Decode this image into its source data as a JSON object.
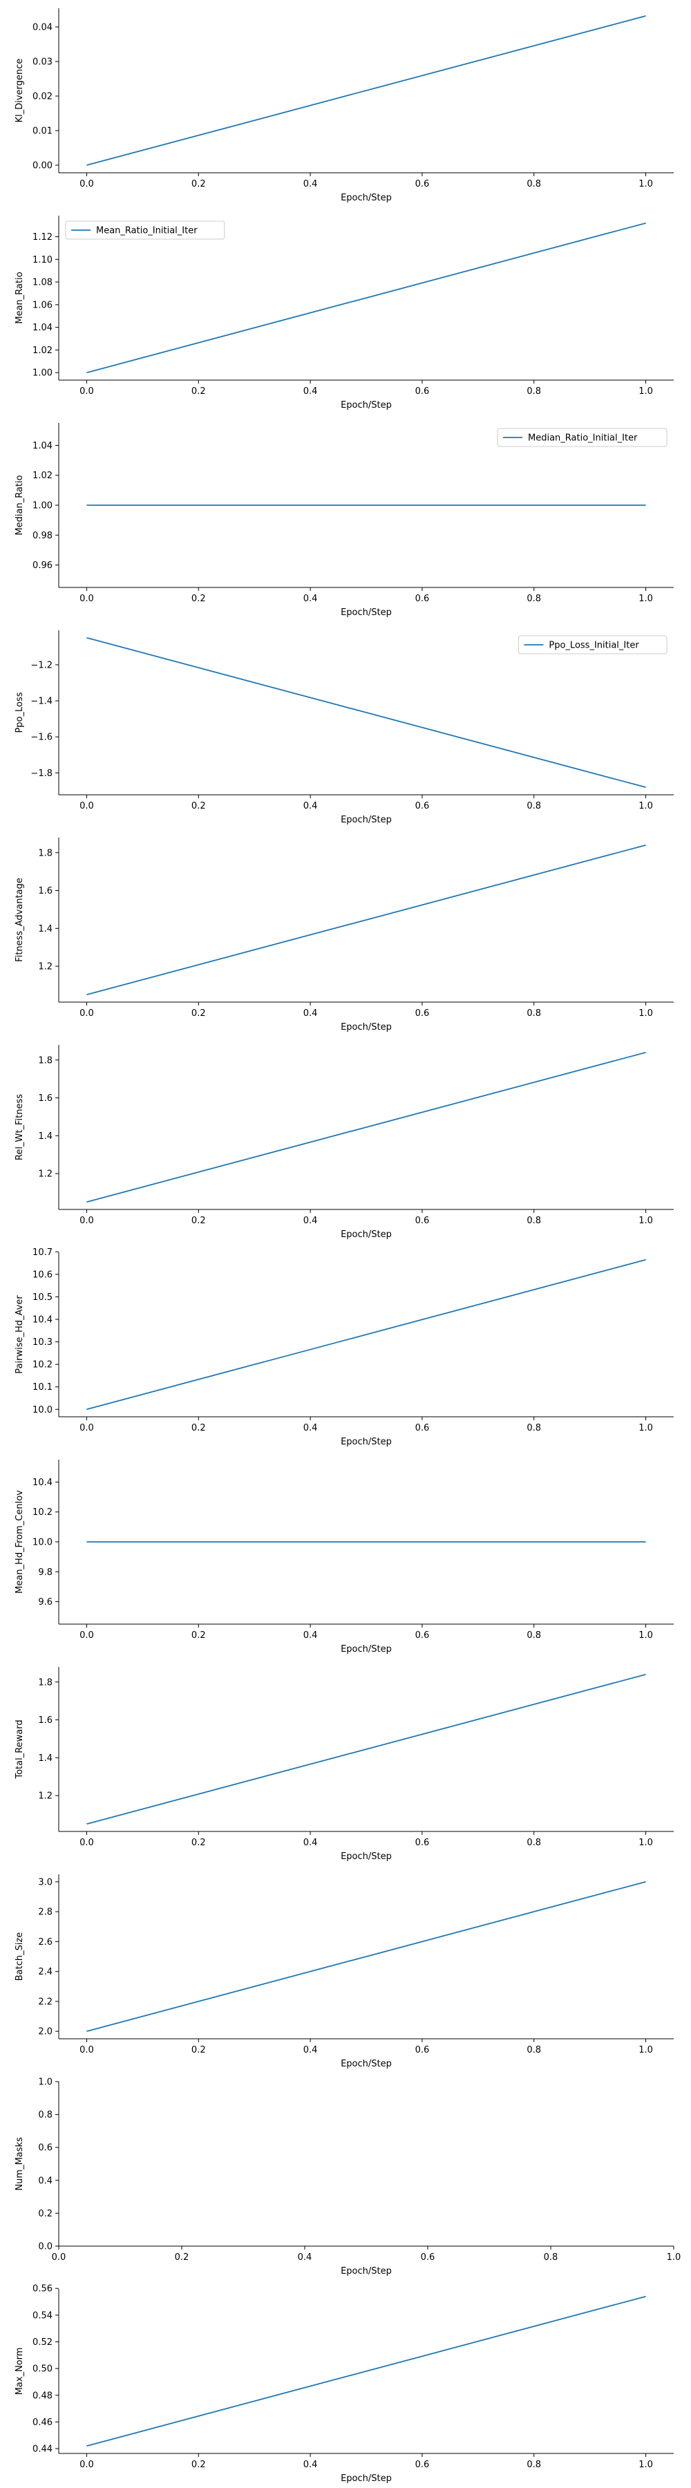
{
  "line_color": "#1f77b4",
  "chart_data": [
    {
      "type": "line",
      "xlabel": "Epoch/Step",
      "ylabel": "Kl_Divergence",
      "x": [
        0,
        1
      ],
      "y": [
        0.0,
        0.0432
      ],
      "xlim": [
        -0.05,
        1.05
      ],
      "ylim": [
        -0.0022,
        0.0454
      ],
      "xticks": [
        0,
        0.2,
        0.4,
        0.6,
        0.8,
        1
      ],
      "xtick_labels": [
        "0.0",
        "0.2",
        "0.4",
        "0.6",
        "0.8",
        "1.0"
      ],
      "yticks": [
        0,
        0.01,
        0.02,
        0.03,
        0.04
      ],
      "ytick_labels": [
        "0.00",
        "0.01",
        "0.02",
        "0.03",
        "0.04"
      ],
      "legend": null
    },
    {
      "type": "line",
      "xlabel": "Epoch/Step",
      "ylabel": "Mean_Ratio",
      "x": [
        0,
        1
      ],
      "y": [
        1.0,
        1.132
      ],
      "xlim": [
        -0.05,
        1.05
      ],
      "ylim": [
        0.9934,
        1.1386
      ],
      "xticks": [
        0,
        0.2,
        0.4,
        0.6,
        0.8,
        1
      ],
      "xtick_labels": [
        "0.0",
        "0.2",
        "0.4",
        "0.6",
        "0.8",
        "1.0"
      ],
      "yticks": [
        1.0,
        1.02,
        1.04,
        1.06,
        1.08,
        1.1,
        1.12
      ],
      "ytick_labels": [
        "1.00",
        "1.02",
        "1.04",
        "1.06",
        "1.08",
        "1.10",
        "1.12"
      ],
      "legend": {
        "label": "Mean_Ratio_Initial_Iter",
        "position": "top-left"
      }
    },
    {
      "type": "line",
      "xlabel": "Epoch/Step",
      "ylabel": "Median_Ratio",
      "x": [
        0,
        1
      ],
      "y": [
        1.0,
        1.0
      ],
      "xlim": [
        -0.05,
        1.05
      ],
      "ylim": [
        0.945,
        1.055
      ],
      "xticks": [
        0,
        0.2,
        0.4,
        0.6,
        0.8,
        1
      ],
      "xtick_labels": [
        "0.0",
        "0.2",
        "0.4",
        "0.6",
        "0.8",
        "1.0"
      ],
      "yticks": [
        0.96,
        0.98,
        1.0,
        1.02,
        1.04
      ],
      "ytick_labels": [
        "0.96",
        "0.98",
        "1.00",
        "1.02",
        "1.04"
      ],
      "legend": {
        "label": "Median_Ratio_Initial_Iter",
        "position": "top-right"
      }
    },
    {
      "type": "line",
      "xlabel": "Epoch/Step",
      "ylabel": "Ppo_Loss",
      "x": [
        0,
        1
      ],
      "y": [
        -1.05,
        -1.88
      ],
      "xlim": [
        -0.05,
        1.05
      ],
      "ylim": [
        -1.9215,
        -1.0085
      ],
      "xticks": [
        0,
        0.2,
        0.4,
        0.6,
        0.8,
        1
      ],
      "xtick_labels": [
        "0.0",
        "0.2",
        "0.4",
        "0.6",
        "0.8",
        "1.0"
      ],
      "yticks": [
        -1.8,
        -1.6,
        -1.4,
        -1.2
      ],
      "ytick_labels": [
        "−1.8",
        "−1.6",
        "−1.4",
        "−1.2"
      ],
      "legend": {
        "label": "Ppo_Loss_Initial_Iter",
        "position": "top-right"
      }
    },
    {
      "type": "line",
      "xlabel": "Epoch/Step",
      "ylabel": "Fitness_Advantage",
      "x": [
        0,
        1
      ],
      "y": [
        1.05,
        1.84
      ],
      "xlim": [
        -0.05,
        1.05
      ],
      "ylim": [
        1.0105,
        1.8795
      ],
      "xticks": [
        0,
        0.2,
        0.4,
        0.6,
        0.8,
        1
      ],
      "xtick_labels": [
        "0.0",
        "0.2",
        "0.4",
        "0.6",
        "0.8",
        "1.0"
      ],
      "yticks": [
        1.2,
        1.4,
        1.6,
        1.8
      ],
      "ytick_labels": [
        "1.2",
        "1.4",
        "1.6",
        "1.8"
      ],
      "legend": null
    },
    {
      "type": "line",
      "xlabel": "Epoch/Step",
      "ylabel": "Rel_Wt_Fitness",
      "x": [
        0,
        1
      ],
      "y": [
        1.05,
        1.84
      ],
      "xlim": [
        -0.05,
        1.05
      ],
      "ylim": [
        1.0105,
        1.8795
      ],
      "xticks": [
        0,
        0.2,
        0.4,
        0.6,
        0.8,
        1
      ],
      "xtick_labels": [
        "0.0",
        "0.2",
        "0.4",
        "0.6",
        "0.8",
        "1.0"
      ],
      "yticks": [
        1.2,
        1.4,
        1.6,
        1.8
      ],
      "ytick_labels": [
        "1.2",
        "1.4",
        "1.6",
        "1.8"
      ],
      "legend": null
    },
    {
      "type": "line",
      "xlabel": "Epoch/Step",
      "ylabel": "Pairwise_Hd_Aver",
      "x": [
        0,
        1
      ],
      "y": [
        10.0,
        10.665
      ],
      "xlim": [
        -0.05,
        1.05
      ],
      "ylim": [
        9.967,
        10.698
      ],
      "xticks": [
        0,
        0.2,
        0.4,
        0.6,
        0.8,
        1
      ],
      "xtick_labels": [
        "0.0",
        "0.2",
        "0.4",
        "0.6",
        "0.8",
        "1.0"
      ],
      "yticks": [
        10.0,
        10.1,
        10.2,
        10.3,
        10.4,
        10.5,
        10.6,
        10.7
      ],
      "ytick_labels": [
        "10.0",
        "10.1",
        "10.2",
        "10.3",
        "10.4",
        "10.5",
        "10.6",
        "10.7"
      ],
      "legend": null
    },
    {
      "type": "line",
      "xlabel": "Epoch/Step",
      "ylabel": "Mean_Hd_From_Cenlov",
      "x": [
        0,
        1
      ],
      "y": [
        10.0,
        10.0
      ],
      "xlim": [
        -0.05,
        1.05
      ],
      "ylim": [
        9.45,
        10.55
      ],
      "xticks": [
        0,
        0.2,
        0.4,
        0.6,
        0.8,
        1
      ],
      "xtick_labels": [
        "0.0",
        "0.2",
        "0.4",
        "0.6",
        "0.8",
        "1.0"
      ],
      "yticks": [
        9.6,
        9.8,
        10.0,
        10.2,
        10.4
      ],
      "ytick_labels": [
        "9.6",
        "9.8",
        "10.0",
        "10.2",
        "10.4"
      ],
      "legend": null
    },
    {
      "type": "line",
      "xlabel": "Epoch/Step",
      "ylabel": "Total_Reward",
      "x": [
        0,
        1
      ],
      "y": [
        1.05,
        1.84
      ],
      "xlim": [
        -0.05,
        1.05
      ],
      "ylim": [
        1.0105,
        1.8795
      ],
      "xticks": [
        0,
        0.2,
        0.4,
        0.6,
        0.8,
        1
      ],
      "xtick_labels": [
        "0.0",
        "0.2",
        "0.4",
        "0.6",
        "0.8",
        "1.0"
      ],
      "yticks": [
        1.2,
        1.4,
        1.6,
        1.8
      ],
      "ytick_labels": [
        "1.2",
        "1.4",
        "1.6",
        "1.8"
      ],
      "legend": null
    },
    {
      "type": "line",
      "xlabel": "Epoch/Step",
      "ylabel": "Batch_Size",
      "x": [
        0,
        1
      ],
      "y": [
        2.0,
        3.0
      ],
      "xlim": [
        -0.05,
        1.05
      ],
      "ylim": [
        1.95,
        3.05
      ],
      "xticks": [
        0,
        0.2,
        0.4,
        0.6,
        0.8,
        1
      ],
      "xtick_labels": [
        "0.0",
        "0.2",
        "0.4",
        "0.6",
        "0.8",
        "1.0"
      ],
      "yticks": [
        2.0,
        2.2,
        2.4,
        2.6,
        2.8,
        3.0
      ],
      "ytick_labels": [
        "2.0",
        "2.2",
        "2.4",
        "2.6",
        "2.8",
        "3.0"
      ],
      "legend": null
    },
    {
      "type": "line",
      "xlabel": "Epoch/Step",
      "ylabel": "Num_Masks",
      "x": [],
      "y": [],
      "xlim": [
        0,
        1
      ],
      "ylim": [
        0,
        1
      ],
      "xticks": [
        0,
        0.2,
        0.4,
        0.6,
        0.8,
        1
      ],
      "xtick_labels": [
        "0.0",
        "0.2",
        "0.4",
        "0.6",
        "0.8",
        "1.0"
      ],
      "yticks": [
        0,
        0.2,
        0.4,
        0.6,
        0.8,
        1
      ],
      "ytick_labels": [
        "0.0",
        "0.2",
        "0.4",
        "0.6",
        "0.8",
        "1.0"
      ],
      "legend": null
    },
    {
      "type": "line",
      "xlabel": "Epoch/Step",
      "ylabel": "Max_Norm",
      "x": [
        0,
        1
      ],
      "y": [
        0.442,
        0.554
      ],
      "xlim": [
        -0.05,
        1.05
      ],
      "ylim": [
        0.4364,
        0.5596
      ],
      "xticks": [
        0,
        0.2,
        0.4,
        0.6,
        0.8,
        1
      ],
      "xtick_labels": [
        "0.0",
        "0.2",
        "0.4",
        "0.6",
        "0.8",
        "1.0"
      ],
      "yticks": [
        0.44,
        0.46,
        0.48,
        0.5,
        0.52,
        0.54,
        0.56
      ],
      "ytick_labels": [
        "0.44",
        "0.46",
        "0.48",
        "0.50",
        "0.52",
        "0.54",
        "0.56"
      ],
      "legend": null
    }
  ]
}
